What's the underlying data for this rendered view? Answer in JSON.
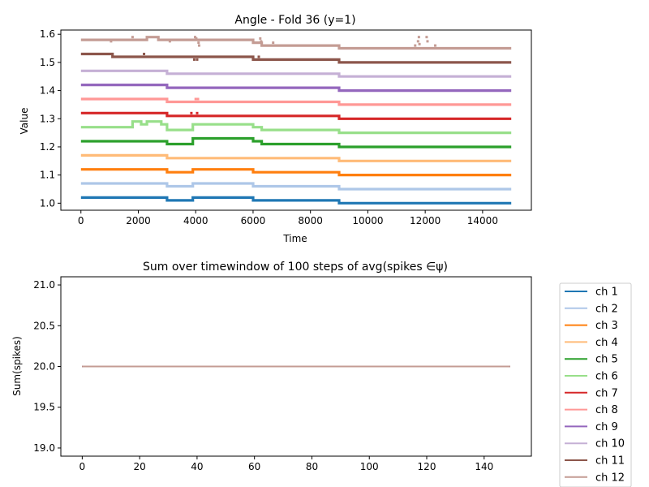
{
  "chart_data": [
    {
      "type": "line",
      "title": "Angle - Fold 36 (y=1)",
      "xlabel": "Time",
      "ylabel": "Value",
      "xlim": [
        -700,
        15700
      ],
      "ylim": [
        0.975,
        1.615
      ],
      "xticks": [
        0,
        2000,
        4000,
        6000,
        8000,
        10000,
        12000,
        14000
      ],
      "yticks": [
        1.0,
        1.1,
        1.2,
        1.3,
        1.4,
        1.5,
        1.6
      ],
      "grid": false,
      "series": [
        {
          "name": "ch 1",
          "color": "#1f77b4",
          "segments": [
            [
              0,
              3000,
              1.02
            ],
            [
              3000,
              3900,
              1.01
            ],
            [
              3900,
              6000,
              1.02
            ],
            [
              6000,
              9000,
              1.01
            ],
            [
              9000,
              15000,
              1.0
            ]
          ]
        },
        {
          "name": "ch 2",
          "color": "#aec7e8",
          "segments": [
            [
              0,
              3000,
              1.07
            ],
            [
              3000,
              3900,
              1.06
            ],
            [
              3900,
              6000,
              1.07
            ],
            [
              6000,
              9000,
              1.06
            ],
            [
              9000,
              15000,
              1.05
            ]
          ]
        },
        {
          "name": "ch 3",
          "color": "#ff7f0e",
          "segments": [
            [
              0,
              3000,
              1.12
            ],
            [
              3000,
              3900,
              1.11
            ],
            [
              3900,
              6000,
              1.12
            ],
            [
              6000,
              9000,
              1.11
            ],
            [
              9000,
              15000,
              1.1
            ]
          ]
        },
        {
          "name": "ch 4",
          "color": "#ffbb78",
          "segments": [
            [
              0,
              3000,
              1.17
            ],
            [
              3000,
              6000,
              1.16
            ],
            [
              6000,
              9000,
              1.16
            ],
            [
              9000,
              15000,
              1.15
            ]
          ]
        },
        {
          "name": "ch 5",
          "color": "#2ca02c",
          "segments": [
            [
              0,
              3000,
              1.22
            ],
            [
              3000,
              3900,
              1.21
            ],
            [
              3900,
              6000,
              1.23
            ],
            [
              6000,
              6300,
              1.22
            ],
            [
              6300,
              9000,
              1.21
            ],
            [
              9000,
              15000,
              1.2
            ]
          ]
        },
        {
          "name": "ch 6",
          "color": "#98df8a",
          "segments": [
            [
              0,
              1800,
              1.27
            ],
            [
              1800,
              2100,
              1.29
            ],
            [
              2100,
              2300,
              1.28
            ],
            [
              2300,
              2800,
              1.29
            ],
            [
              2800,
              3000,
              1.28
            ],
            [
              3000,
              3900,
              1.26
            ],
            [
              3900,
              6000,
              1.28
            ],
            [
              6000,
              6300,
              1.27
            ],
            [
              6300,
              9000,
              1.26
            ],
            [
              9000,
              15000,
              1.25
            ]
          ]
        },
        {
          "name": "ch 7",
          "color": "#d62728",
          "segments": [
            [
              0,
              3000,
              1.32
            ],
            [
              3000,
              6000,
              1.31
            ],
            [
              6000,
              9000,
              1.31
            ],
            [
              9000,
              15000,
              1.3
            ]
          ]
        },
        {
          "name": "ch 8",
          "color": "#ff9896",
          "segments": [
            [
              0,
              3000,
              1.37
            ],
            [
              3000,
              6000,
              1.36
            ],
            [
              6000,
              9000,
              1.36
            ],
            [
              9000,
              15000,
              1.35
            ]
          ]
        },
        {
          "name": "ch 9",
          "color": "#9467bd",
          "segments": [
            [
              0,
              3000,
              1.42
            ],
            [
              3000,
              9000,
              1.41
            ],
            [
              9000,
              15000,
              1.4
            ]
          ]
        },
        {
          "name": "ch 10",
          "color": "#c5b0d5",
          "segments": [
            [
              0,
              3000,
              1.47
            ],
            [
              3000,
              9000,
              1.46
            ],
            [
              9000,
              15000,
              1.45
            ]
          ]
        },
        {
          "name": "ch 11",
          "color": "#8c564b",
          "segments": [
            [
              0,
              1100,
              1.53
            ],
            [
              1100,
              1300,
              1.52
            ],
            [
              1300,
              6000,
              1.52
            ],
            [
              6000,
              9000,
              1.51
            ],
            [
              9000,
              15000,
              1.5
            ]
          ]
        },
        {
          "name": "ch 12",
          "color": "#c49c94",
          "segments": [
            [
              0,
              2300,
              1.58
            ],
            [
              2300,
              2700,
              1.59
            ],
            [
              2700,
              3000,
              1.58
            ],
            [
              3000,
              6000,
              1.58
            ],
            [
              6000,
              6300,
              1.57
            ],
            [
              6300,
              9000,
              1.56
            ],
            [
              9000,
              15000,
              1.55
            ]
          ]
        }
      ],
      "outliers": [
        {
          "series": "ch 12",
          "x": 1050,
          "y": 1.575
        },
        {
          "series": "ch 12",
          "x": 1800,
          "y": 1.59
        },
        {
          "series": "ch 12",
          "x": 3100,
          "y": 1.575
        },
        {
          "series": "ch 12",
          "x": 3980,
          "y": 1.59
        },
        {
          "series": "ch 12",
          "x": 4020,
          "y": 1.585
        },
        {
          "series": "ch 12",
          "x": 4100,
          "y": 1.57
        },
        {
          "series": "ch 12",
          "x": 4120,
          "y": 1.56
        },
        {
          "series": "ch 12",
          "x": 6250,
          "y": 1.585
        },
        {
          "series": "ch 12",
          "x": 6280,
          "y": 1.575
        },
        {
          "series": "ch 12",
          "x": 6700,
          "y": 1.57
        },
        {
          "series": "ch 12",
          "x": 11750,
          "y": 1.575
        },
        {
          "series": "ch 12",
          "x": 11780,
          "y": 1.59
        },
        {
          "series": "ch 12",
          "x": 11800,
          "y": 1.565
        },
        {
          "series": "ch 12",
          "x": 11650,
          "y": 1.56
        },
        {
          "series": "ch 12",
          "x": 12050,
          "y": 1.59
        },
        {
          "series": "ch 12",
          "x": 12080,
          "y": 1.575
        },
        {
          "series": "ch 12",
          "x": 12350,
          "y": 1.56
        },
        {
          "series": "ch 11",
          "x": 2200,
          "y": 1.53
        },
        {
          "series": "ch 11",
          "x": 3950,
          "y": 1.51
        },
        {
          "series": "ch 11",
          "x": 4050,
          "y": 1.51
        },
        {
          "series": "ch 11",
          "x": 6200,
          "y": 1.52
        },
        {
          "series": "ch 8",
          "x": 4000,
          "y": 1.37
        },
        {
          "series": "ch 8",
          "x": 4080,
          "y": 1.37
        },
        {
          "series": "ch 7",
          "x": 3850,
          "y": 1.32
        },
        {
          "series": "ch 7",
          "x": 4050,
          "y": 1.32
        },
        {
          "series": "ch 5",
          "x": 6250,
          "y": 1.22
        }
      ]
    },
    {
      "type": "line",
      "title": "Sum over timewindow of 100 steps of avg(spikes ∈ψ)",
      "xlabel": "",
      "ylabel": "Sum(spikes)",
      "xlim": [
        -7.45,
        156.45
      ],
      "ylim": [
        18.9,
        21.1
      ],
      "xticks": [
        0,
        20,
        40,
        60,
        80,
        100,
        120,
        140
      ],
      "yticks": [
        19.0,
        19.5,
        20.0,
        20.5,
        21.0
      ],
      "grid": false,
      "x_range": [
        0,
        149
      ],
      "value": 20.0,
      "legend_position": "outside-right",
      "series_names": [
        "ch 1",
        "ch 2",
        "ch 3",
        "ch 4",
        "ch 5",
        "ch 6",
        "ch 7",
        "ch 8",
        "ch 9",
        "ch 10",
        "ch 11",
        "ch 12"
      ]
    }
  ]
}
